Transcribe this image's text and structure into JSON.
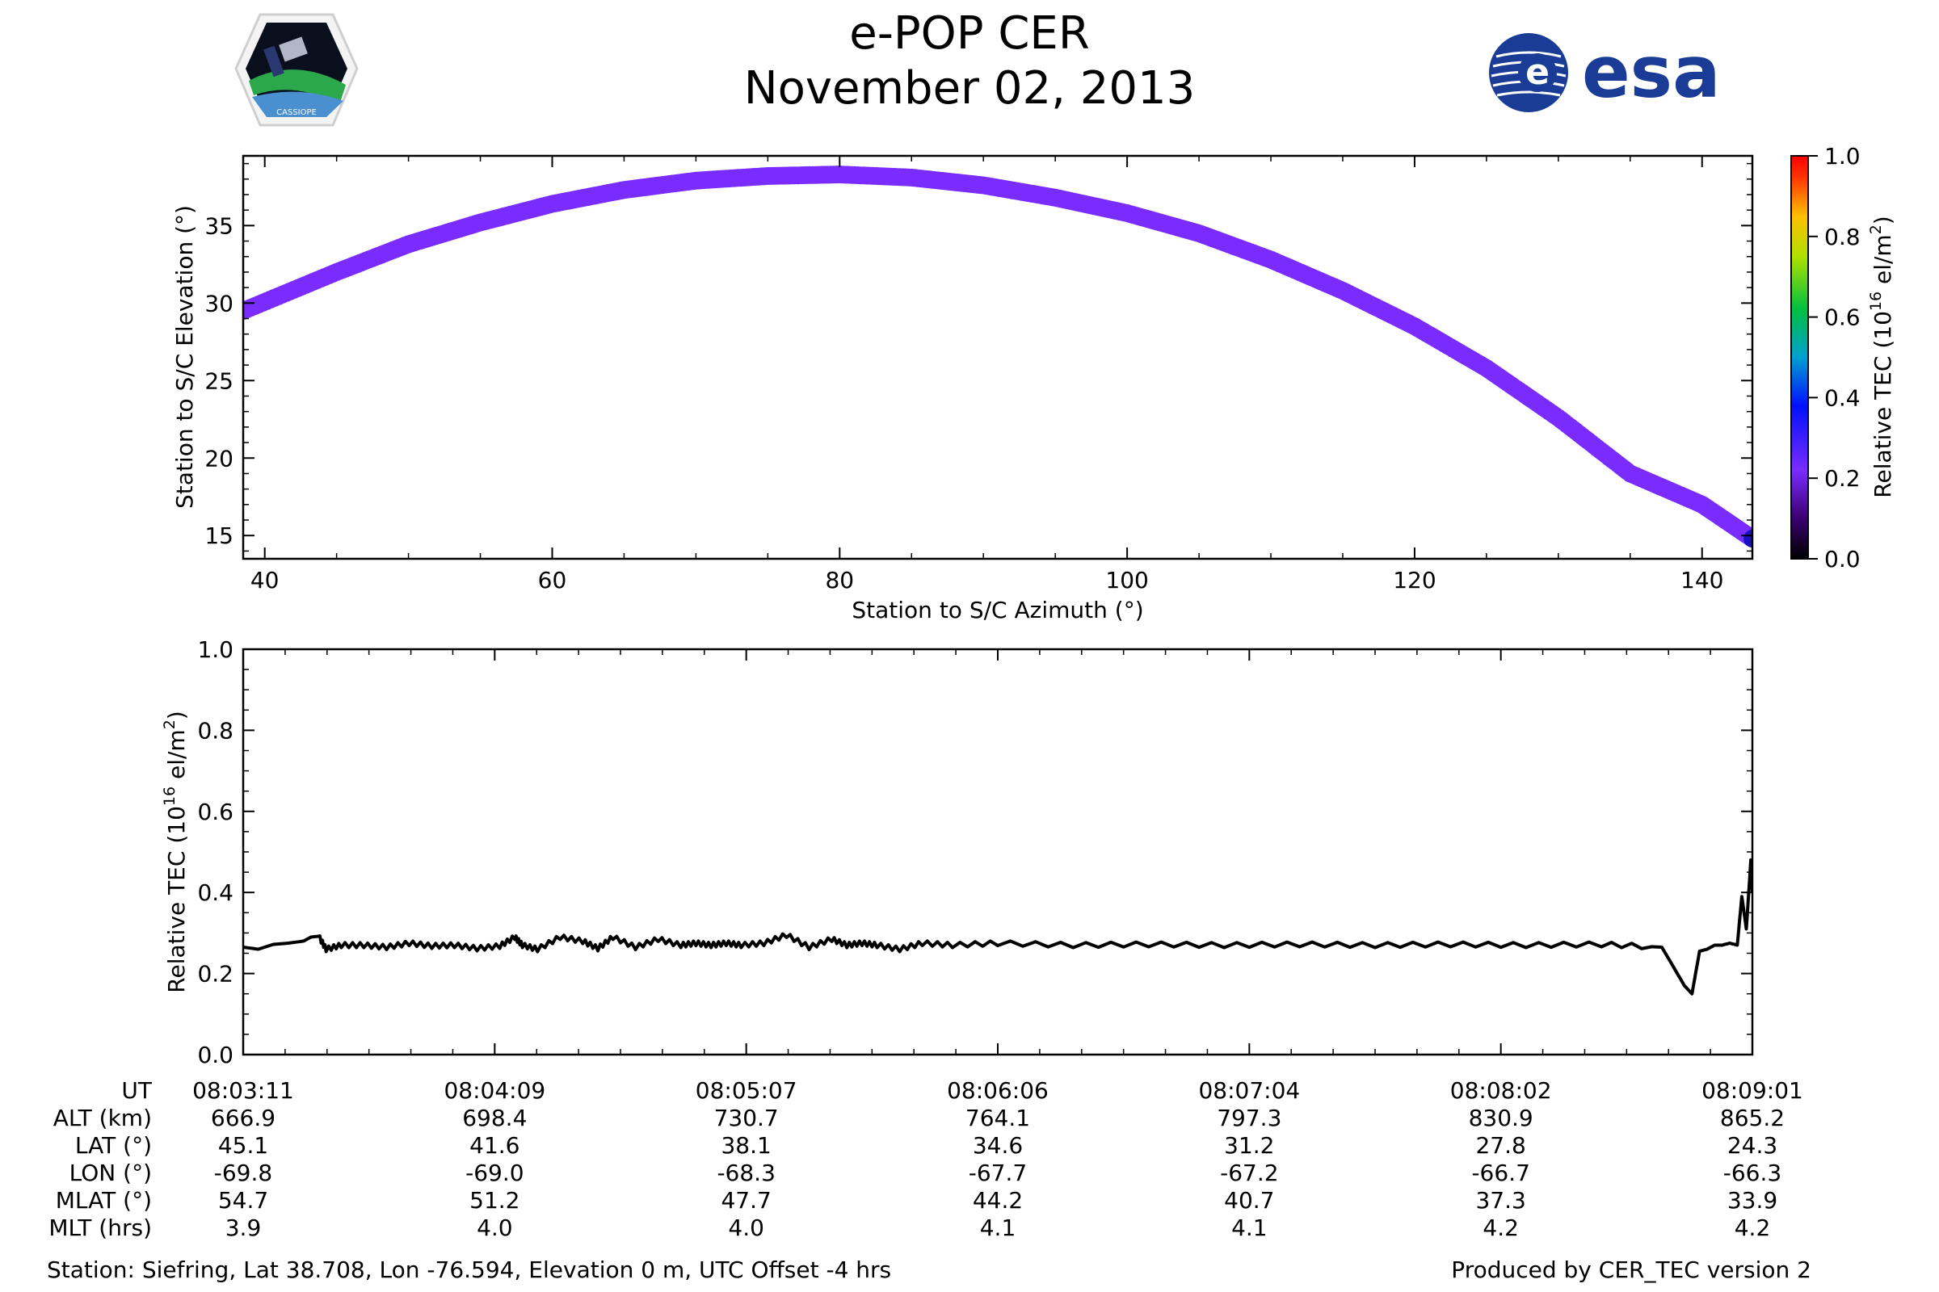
{
  "header": {
    "title": "e-POP CER",
    "date": "November 02, 2013",
    "logo_left_text": "CASSIOPE",
    "logo_right_text": "esa"
  },
  "chart_data": [
    {
      "type": "scatter",
      "xlabel": "Station to S/C Azimuth (°)",
      "ylabel": "Station to S/C Elevation (°)",
      "xlim": [
        38.5,
        143.5
      ],
      "ylim": [
        13.5,
        39.5
      ],
      "xticks": [
        40,
        60,
        80,
        100,
        120,
        140
      ],
      "yticks": [
        15,
        20,
        25,
        30,
        35
      ],
      "color_by": "Relative TEC",
      "points": {
        "azimuth": [
          38.5,
          45,
          50,
          55,
          60,
          65,
          70,
          75,
          80,
          85,
          90,
          95,
          100,
          105,
          110,
          115,
          120,
          125,
          130,
          135,
          140,
          143.5
        ],
        "elevation": [
          29.5,
          32.0,
          33.8,
          35.2,
          36.4,
          37.3,
          37.9,
          38.2,
          38.3,
          38.1,
          37.6,
          36.8,
          35.8,
          34.5,
          32.8,
          30.8,
          28.5,
          25.8,
          22.6,
          19.0,
          17.0,
          14.8
        ]
      },
      "colorbar": {
        "label": "Relative TEC (10",
        "label_sup": "16",
        "label_tail": " el/m",
        "label_sup2": "2",
        "label_end": ")",
        "range": [
          0.0,
          1.0
        ],
        "ticks": [
          "0.0",
          "0.2",
          "0.4",
          "0.6",
          "0.8",
          "1.0"
        ]
      }
    },
    {
      "type": "line",
      "ylabel": "Relative TEC (10",
      "ylabel_sup": "16",
      "ylabel_tail": " el/m",
      "ylabel_sup2": "2",
      "ylabel_end": ")",
      "ylim": [
        0.0,
        1.0
      ],
      "yticks": [
        "0.0",
        "0.2",
        "0.4",
        "0.6",
        "0.8",
        "1.0"
      ],
      "x_range_fraction": [
        0,
        1
      ],
      "series": [
        {
          "x": [
            0.0,
            0.01,
            0.02,
            0.03,
            0.04,
            0.045,
            0.05,
            0.055,
            0.065,
            0.08,
            0.095,
            0.11,
            0.125,
            0.14,
            0.155,
            0.17,
            0.18,
            0.185,
            0.195,
            0.21,
            0.225,
            0.235,
            0.245,
            0.26,
            0.275,
            0.29,
            0.3,
            0.31,
            0.32,
            0.33,
            0.345,
            0.36,
            0.375,
            0.39,
            0.4,
            0.41,
            0.42,
            0.435,
            0.45,
            0.47,
            0.5,
            0.55,
            0.6,
            0.65,
            0.7,
            0.75,
            0.8,
            0.85,
            0.9,
            0.94,
            0.955,
            0.96,
            0.965,
            0.97,
            0.975,
            0.98,
            0.985,
            0.99,
            0.993,
            0.996,
            0.999,
            1.0
          ],
          "y": [
            0.265,
            0.26,
            0.272,
            0.275,
            0.28,
            0.29,
            0.292,
            0.26,
            0.27,
            0.27,
            0.265,
            0.275,
            0.268,
            0.27,
            0.262,
            0.268,
            0.29,
            0.27,
            0.26,
            0.29,
            0.28,
            0.262,
            0.29,
            0.265,
            0.285,
            0.27,
            0.275,
            0.27,
            0.275,
            0.27,
            0.275,
            0.295,
            0.265,
            0.285,
            0.27,
            0.275,
            0.27,
            0.26,
            0.275,
            0.27,
            0.275,
            0.27,
            0.272,
            0.27,
            0.272,
            0.27,
            0.272,
            0.27,
            0.272,
            0.265,
            0.17,
            0.15,
            0.255,
            0.26,
            0.27,
            0.27,
            0.275,
            0.27,
            0.39,
            0.31,
            0.48,
            0.4
          ]
        }
      ],
      "ut_row": {
        "rows": [
          {
            "label": "UT",
            "values": [
              "08:03:11",
              "08:04:09",
              "08:05:07",
              "08:06:06",
              "08:07:04",
              "08:08:02",
              "08:09:01"
            ]
          },
          {
            "label": "ALT (km)",
            "values": [
              "666.9",
              "698.4",
              "730.7",
              "764.1",
              "797.3",
              "830.9",
              "865.2"
            ]
          },
          {
            "label": "LAT (°)",
            "values": [
              "45.1",
              "41.6",
              "38.1",
              "34.6",
              "31.2",
              "27.8",
              "24.3"
            ]
          },
          {
            "label": "LON (°)",
            "values": [
              "-69.8",
              "-69.0",
              "-68.3",
              "-67.7",
              "-67.2",
              "-66.7",
              "-66.3"
            ]
          },
          {
            "label": "MLAT (°)",
            "values": [
              "54.7",
              "51.2",
              "47.7",
              "44.2",
              "40.7",
              "37.3",
              "33.9"
            ]
          },
          {
            "label": "MLT (hrs)",
            "values": [
              "3.9",
              "4.0",
              "4.0",
              "4.1",
              "4.1",
              "4.2",
              "4.2"
            ]
          }
        ]
      }
    }
  ],
  "footer": {
    "station": "Station: Siefring, Lat 38.708, Lon -76.594, Elevation 0 m, UTC Offset -4 hrs",
    "produced": "Produced by CER_TEC version 2"
  },
  "colors": {
    "track": "#7a2cff",
    "line": "#000000",
    "axis": "#000000",
    "esa_blue": "#1a3c96"
  }
}
